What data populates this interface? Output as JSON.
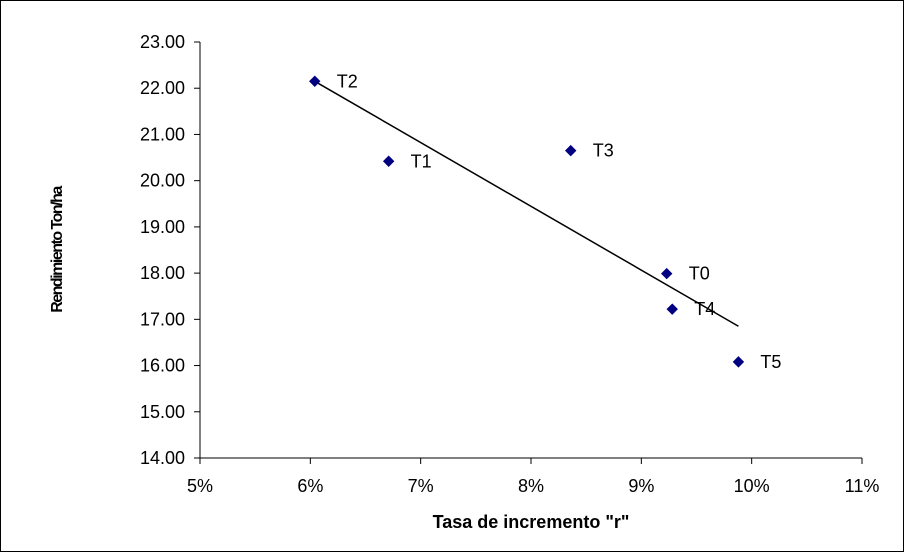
{
  "chart_data": {
    "type": "scatter",
    "title": "",
    "xlabel": "Tasa de incremento \"r\"",
    "ylabel": "Rendimiento Ton/ha",
    "xlim": [
      0.05,
      0.11
    ],
    "ylim": [
      14,
      23
    ],
    "x_ticks": [
      "5%",
      "6%",
      "7%",
      "8%",
      "9%",
      "10%",
      "11%"
    ],
    "y_ticks": [
      "14.00",
      "15.00",
      "16.00",
      "17.00",
      "18.00",
      "19.00",
      "20.00",
      "21.00",
      "22.00",
      "23.00"
    ],
    "grid": false,
    "legend": "none",
    "marker": "diamond",
    "marker_color": "#000080",
    "points": [
      {
        "label": "T2",
        "x": 0.0604,
        "y": 22.15
      },
      {
        "label": "T1",
        "x": 0.0671,
        "y": 20.42
      },
      {
        "label": "T3",
        "x": 0.0836,
        "y": 20.65
      },
      {
        "label": "T0",
        "x": 0.0923,
        "y": 17.99
      },
      {
        "label": "T4",
        "x": 0.0928,
        "y": 17.22
      },
      {
        "label": "T5",
        "x": 0.0988,
        "y": 16.08
      }
    ],
    "trendline": {
      "type": "linear",
      "x": [
        0.0604,
        0.0988
      ],
      "y": [
        22.15,
        16.85
      ]
    }
  }
}
